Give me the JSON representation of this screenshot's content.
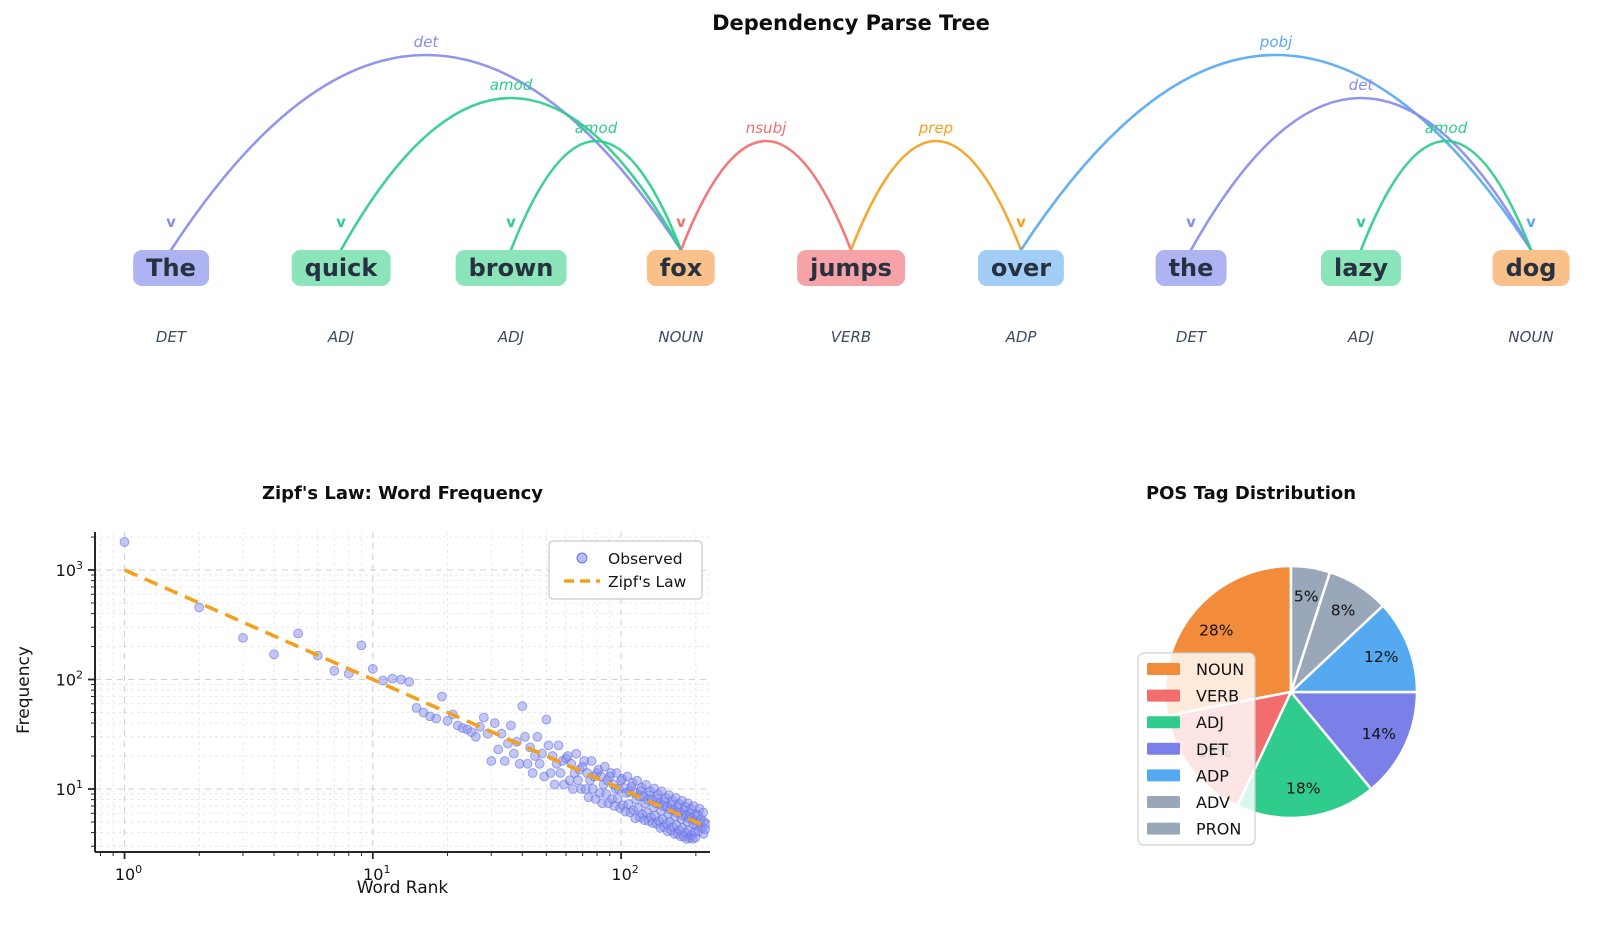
{
  "tree": {
    "title": "Dependency Parse Tree",
    "words": [
      {
        "text": "The",
        "pos": "DET"
      },
      {
        "text": "quick",
        "pos": "ADJ"
      },
      {
        "text": "brown",
        "pos": "ADJ"
      },
      {
        "text": "fox",
        "pos": "NOUN"
      },
      {
        "text": "jumps",
        "pos": "VERB"
      },
      {
        "text": "over",
        "pos": "ADP"
      },
      {
        "text": "the",
        "pos": "DET"
      },
      {
        "text": "lazy",
        "pos": "ADJ"
      },
      {
        "text": "dog",
        "pos": "NOUN"
      }
    ],
    "arcs": [
      {
        "label": "det",
        "head": 3,
        "dep": 0
      },
      {
        "label": "amod",
        "head": 3,
        "dep": 1
      },
      {
        "label": "amod",
        "head": 3,
        "dep": 2
      },
      {
        "label": "nsubj",
        "head": 4,
        "dep": 3
      },
      {
        "label": "prep",
        "head": 4,
        "dep": 5
      },
      {
        "label": "pobj",
        "head": 5,
        "dep": 8
      },
      {
        "label": "det",
        "head": 8,
        "dep": 6
      },
      {
        "label": "amod",
        "head": 8,
        "dep": 7
      }
    ],
    "colors": {
      "box": {
        "DET": "#aeb3f2",
        "ADJ": "#8ce4ba",
        "NOUN": "#f9c08a",
        "VERB": "#f5a3a6",
        "ADP": "#a2cdf6"
      },
      "arc": {
        "det": "#888dea",
        "amod": "#2fcc8e",
        "nsubj": "#f26d6d",
        "prep": "#f5a01d",
        "pobj": "#57a9f2"
      },
      "word_text": "#27313f",
      "pos_text": "#3e4a5e"
    }
  },
  "chart_data": [
    {
      "type": "scatter",
      "title": "Zipf's Law: Word Frequency",
      "xlabel": "Word Rank",
      "ylabel": "Frequency",
      "xscale": "log",
      "yscale": "log",
      "xlim": [
        0.77,
        221
      ],
      "ylim": [
        2.6,
        2224
      ],
      "grid": true,
      "xticks": [
        {
          "value": 1,
          "base": "10",
          "exp": "0"
        },
        {
          "value": 10,
          "base": "10",
          "exp": "1"
        },
        {
          "value": 100,
          "base": "10",
          "exp": "2"
        }
      ],
      "yticks": [
        {
          "value": 10,
          "base": "10",
          "exp": "1"
        },
        {
          "value": 100,
          "base": "10",
          "exp": "2"
        },
        {
          "value": 1000,
          "base": "10",
          "exp": "3"
        }
      ],
      "legend": {
        "position": "upper right",
        "entries": [
          {
            "label": "Observed",
            "type": "marker",
            "color": "#8890ee"
          },
          {
            "label": "Zipf's Law",
            "type": "dashed_line",
            "color": "#f5a01d"
          }
        ]
      },
      "series": [
        {
          "name": "Observed",
          "kind": "scatter",
          "color": "#8890ee",
          "points": [
            [
              1,
              1800
            ],
            [
              2,
              455
            ],
            [
              3,
              240
            ],
            [
              4,
              170
            ],
            [
              5,
              263
            ],
            [
              6,
              165
            ],
            [
              7,
              120
            ],
            [
              8,
              113
            ],
            [
              9,
              205
            ],
            [
              10,
              125
            ],
            [
              11,
              98
            ],
            [
              12,
              102
            ],
            [
              13,
              100
            ],
            [
              14,
              95
            ],
            [
              15,
              55
            ],
            [
              16,
              50
            ],
            [
              17,
              46
            ],
            [
              18,
              44
            ],
            [
              19,
              70
            ],
            [
              20,
              42
            ],
            [
              21,
              48
            ],
            [
              22,
              38
            ],
            [
              23,
              36
            ],
            [
              24,
              35
            ],
            [
              25,
              33
            ],
            [
              26,
              30
            ],
            [
              27,
              37
            ],
            [
              28,
              45
            ],
            [
              29,
              32
            ],
            [
              30,
              18
            ],
            [
              31,
              40
            ],
            [
              32,
              23
            ],
            [
              33,
              32
            ],
            [
              34,
              18
            ],
            [
              35,
              26
            ],
            [
              36,
              38
            ],
            [
              37,
              21
            ],
            [
              38,
              27
            ],
            [
              39,
              17
            ],
            [
              40,
              57
            ],
            [
              41,
              30
            ],
            [
              42,
              17
            ],
            [
              43,
              24
            ],
            [
              44,
              14
            ],
            [
              45,
              20
            ],
            [
              46,
              30
            ],
            [
              47,
              17
            ],
            [
              48,
              21
            ],
            [
              49,
              13
            ],
            [
              50,
              43
            ],
            [
              51,
              25
            ],
            [
              52,
              14
            ],
            [
              53,
              20
            ],
            [
              54,
              11
            ],
            [
              55,
              17
            ],
            [
              56,
              25
            ],
            [
              57,
              14
            ],
            [
              58,
              18
            ],
            [
              59,
              11
            ],
            [
              60,
              19
            ],
            [
              61,
              20
            ],
            [
              62,
              12
            ],
            [
              63,
              17
            ],
            [
              64,
              10
            ],
            [
              65,
              14
            ],
            [
              66,
              21
            ],
            [
              67,
              12
            ],
            [
              68,
              15
            ],
            [
              69,
              10
            ],
            [
              70,
              16
            ],
            [
              71,
              18
            ],
            [
              72,
              10
            ],
            [
              73,
              14
            ],
            [
              74,
              8.4
            ],
            [
              75,
              12
            ],
            [
              76,
              18
            ],
            [
              77,
              10
            ],
            [
              78,
              13
            ],
            [
              79,
              8.1
            ],
            [
              80,
              14
            ],
            [
              81,
              15
            ],
            [
              82,
              9.2
            ],
            [
              83,
              13
            ],
            [
              84,
              7.4
            ],
            [
              85,
              11
            ],
            [
              86,
              16
            ],
            [
              87,
              9
            ],
            [
              88,
              12
            ],
            [
              89,
              7.4
            ],
            [
              90,
              13
            ],
            [
              91,
              14
            ],
            [
              92,
              8.1
            ],
            [
              93,
              11
            ],
            [
              94,
              7
            ],
            [
              95,
              10
            ],
            [
              96,
              14
            ],
            [
              97,
              8.2
            ],
            [
              98,
              10
            ],
            [
              99,
              6.7
            ],
            [
              100,
              12
            ],
            [
              101,
              12.4
            ],
            [
              102,
              7.1
            ],
            [
              103,
              10.2
            ],
            [
              104,
              6.2
            ],
            [
              105,
              9.2
            ],
            [
              106,
              13
            ],
            [
              107,
              7.3
            ],
            [
              108,
              9.4
            ],
            [
              109,
              6.1
            ],
            [
              110,
              10.5
            ],
            [
              111,
              11.4
            ],
            [
              112,
              6.4
            ],
            [
              113,
              9.3
            ],
            [
              114,
              5.4
            ],
            [
              115,
              8
            ],
            [
              116,
              11.9
            ],
            [
              117,
              6.7
            ],
            [
              118,
              8.6
            ],
            [
              119,
              5.5
            ],
            [
              120,
              9.6
            ],
            [
              121,
              10.3
            ],
            [
              122,
              5.9
            ],
            [
              123,
              8.5
            ],
            [
              124,
              5.2
            ],
            [
              125,
              7.4
            ],
            [
              126,
              10.9
            ],
            [
              127,
              6.1
            ],
            [
              128,
              8
            ],
            [
              129,
              5.1
            ],
            [
              130,
              8.8
            ],
            [
              131,
              9.5
            ],
            [
              132,
              5.5
            ],
            [
              133,
              7.9
            ],
            [
              134,
              4.9
            ],
            [
              135,
              6.8
            ],
            [
              136,
              10.1
            ],
            [
              137,
              5.7
            ],
            [
              138,
              7.4
            ],
            [
              139,
              4.8
            ],
            [
              140,
              8.2
            ],
            [
              141,
              8.9
            ],
            [
              142,
              5.1
            ],
            [
              143,
              7.3
            ],
            [
              144,
              4.4
            ],
            [
              145,
              6.3
            ],
            [
              146,
              9.5
            ],
            [
              147,
              5.3
            ],
            [
              148,
              7
            ],
            [
              149,
              4.5
            ],
            [
              150,
              7.7
            ],
            [
              151,
              8.3
            ],
            [
              152,
              4.8
            ],
            [
              153,
              6.9
            ],
            [
              154,
              4.1
            ],
            [
              155,
              5.9
            ],
            [
              156,
              8.8
            ],
            [
              157,
              5
            ],
            [
              158,
              6.5
            ],
            [
              159,
              4.2
            ],
            [
              160,
              7.2
            ],
            [
              161,
              7.8
            ],
            [
              162,
              4.5
            ],
            [
              163,
              6.4
            ],
            [
              164,
              3.9
            ],
            [
              165,
              5.6
            ],
            [
              166,
              8.3
            ],
            [
              167,
              4.7
            ],
            [
              168,
              6.1
            ],
            [
              169,
              3.9
            ],
            [
              170,
              6.8
            ],
            [
              171,
              7.3
            ],
            [
              172,
              4.2
            ],
            [
              173,
              6.1
            ],
            [
              174,
              3.7
            ],
            [
              175,
              5.3
            ],
            [
              176,
              7.8
            ],
            [
              177,
              4.4
            ],
            [
              178,
              5.7
            ],
            [
              179,
              3.7
            ],
            [
              180,
              6.4
            ],
            [
              181,
              6.9
            ],
            [
              182,
              4
            ],
            [
              183,
              5.7
            ],
            [
              184,
              3.5
            ],
            [
              185,
              5
            ],
            [
              186,
              7.4
            ],
            [
              187,
              4.2
            ],
            [
              188,
              5.4
            ],
            [
              189,
              3.6
            ],
            [
              190,
              6
            ],
            [
              191,
              6.6
            ],
            [
              192,
              3.8
            ],
            [
              193,
              5.4
            ],
            [
              194,
              3.5
            ],
            [
              195,
              4.8
            ],
            [
              196,
              7
            ],
            [
              197,
              4
            ],
            [
              198,
              5.2
            ],
            [
              199,
              3.6
            ],
            [
              200,
              5.8
            ],
            [
              202,
              4.6
            ],
            [
              204,
              5.8
            ],
            [
              205,
              4.1
            ],
            [
              207,
              6.6
            ],
            [
              208,
              4.9
            ],
            [
              210,
              5.3
            ],
            [
              212,
              4.4
            ],
            [
              214,
              6.1
            ],
            [
              215,
              3.9
            ],
            [
              216,
              5
            ],
            [
              218,
              4.3
            ],
            [
              220,
              4.8
            ]
          ]
        },
        {
          "name": "Zipf's Law",
          "kind": "line",
          "style": "dashed",
          "color": "#f5a01d",
          "formula": "y = 1000 / x",
          "points": [
            [
              1,
              1000
            ],
            [
              220,
              4.55
            ]
          ]
        }
      ]
    },
    {
      "type": "pie",
      "title": "POS Tag Distribution",
      "labels": [
        "NOUN",
        "VERB",
        "ADJ",
        "DET",
        "ADP",
        "ADV",
        "PRON"
      ],
      "values": [
        28,
        15,
        18,
        14,
        12,
        8,
        5
      ],
      "pct_labels": [
        "28%",
        "15%",
        "18%",
        "14%",
        "12%",
        "8%",
        "5%"
      ],
      "colors": [
        "#f28c3b",
        "#f26d6d",
        "#2fcc8e",
        "#7b80e8",
        "#55a9f0",
        "#9aa7b8",
        "#9aa7b8"
      ],
      "start_angle": 90,
      "direction": "counterclockwise",
      "legend_position": "center left"
    }
  ]
}
